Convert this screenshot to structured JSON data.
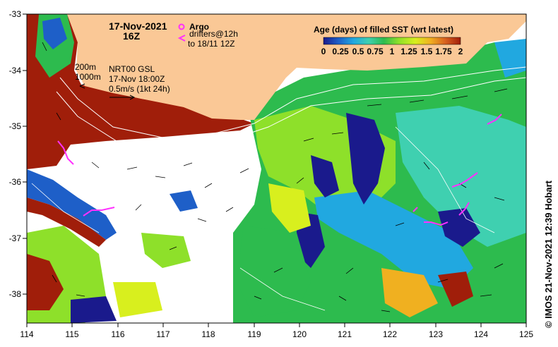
{
  "map": {
    "date_title": "17-Nov-2021",
    "time_title": "16Z",
    "argo_label": "Argo",
    "drifters_label": "drifters@12h",
    "drifters_to": "to 18/11 12Z",
    "isobath_200": "200m",
    "isobath_1000": "1000m",
    "current_source": "NRT00 GSL",
    "current_time": "17-Nov 18:00Z",
    "current_scale": "0.5m/s (1kt 24h)",
    "credit": "© IMOS 21-Nov-2021 12:39 Hobart",
    "lon_ticks": [
      "114",
      "115",
      "116",
      "117",
      "118",
      "119",
      "120",
      "121",
      "122",
      "123",
      "124",
      "125"
    ],
    "lat_ticks": [
      "-33",
      "-34",
      "-35",
      "-36",
      "-37",
      "-38"
    ],
    "colorbar": {
      "title": "Age (days) of filled SST (wrt latest)",
      "ticks": [
        "0",
        "0.25",
        "0.5",
        "0.75",
        "1",
        "1.25",
        "1.5",
        "1.75",
        "2"
      ],
      "colors": [
        "#1a1a8c",
        "#1e5fc8",
        "#21a8e0",
        "#3fd0b0",
        "#2dbb4e",
        "#8ee02a",
        "#d8ef1e",
        "#f0b020",
        "#d8601e",
        "#a01e0a"
      ]
    },
    "colors": {
      "land": "#fac896",
      "argo": "#ff30ff",
      "drifter": "#ff30ff",
      "isobath": "#ffffff"
    }
  }
}
